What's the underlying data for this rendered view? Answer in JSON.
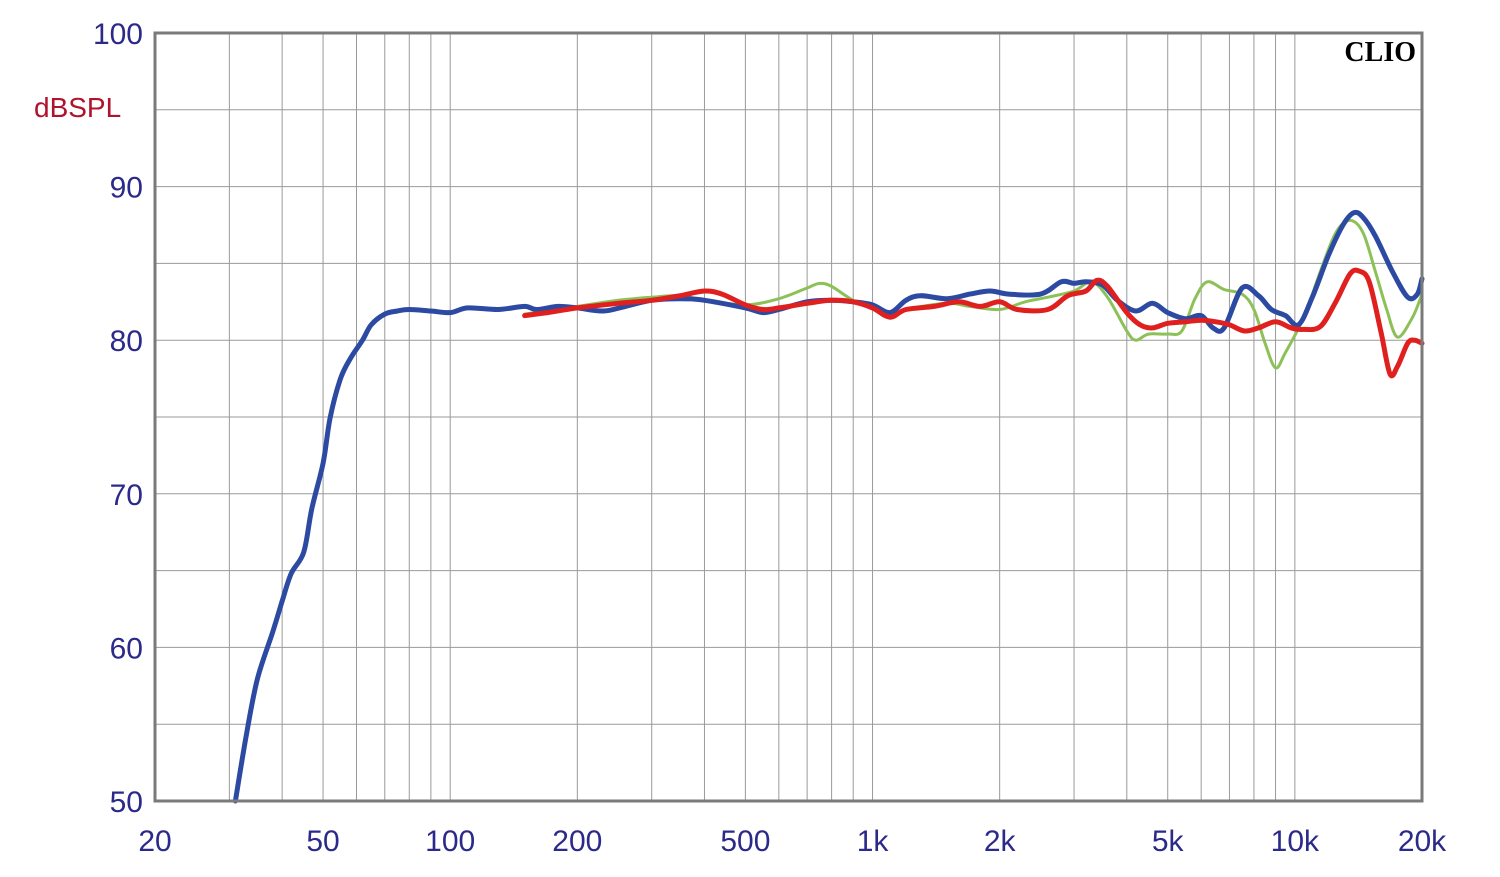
{
  "chart_data": {
    "type": "line",
    "title": "",
    "brand": "CLIO",
    "xlabel": "",
    "ylabel": "dBSPL",
    "x_scale": "log",
    "xlim": [
      20,
      20000
    ],
    "ylim": [
      50,
      100
    ],
    "grid": true,
    "x_ticks": [
      {
        "value": 20,
        "label": "20"
      },
      {
        "value": 50,
        "label": "50"
      },
      {
        "value": 100,
        "label": "100"
      },
      {
        "value": 200,
        "label": "200"
      },
      {
        "value": 500,
        "label": "500"
      },
      {
        "value": 1000,
        "label": "1k"
      },
      {
        "value": 2000,
        "label": "2k"
      },
      {
        "value": 5000,
        "label": "5k"
      },
      {
        "value": 10000,
        "label": "10k"
      },
      {
        "value": 20000,
        "label": "20k"
      }
    ],
    "y_ticks": [
      {
        "value": 50,
        "label": "50"
      },
      {
        "value": 60,
        "label": "60"
      },
      {
        "value": 70,
        "label": "70"
      },
      {
        "value": 80,
        "label": "80"
      },
      {
        "value": 90,
        "label": "90"
      },
      {
        "value": 100,
        "label": "100"
      }
    ],
    "colors": {
      "grid": "#9a9a9a",
      "frame": "#7a7a7a",
      "tick_text": "#2b2a8a",
      "ylabel_text": "#b0132b"
    },
    "series": [
      {
        "color": "#8cc157",
        "width": 3,
        "points": [
          [
            150,
            81.7
          ],
          [
            200,
            82.2
          ],
          [
            250,
            82.6
          ],
          [
            300,
            82.8
          ],
          [
            350,
            82.9
          ],
          [
            400,
            82.6
          ],
          [
            500,
            82.3
          ],
          [
            600,
            82.7
          ],
          [
            700,
            83.4
          ],
          [
            750,
            83.7
          ],
          [
            800,
            83.5
          ],
          [
            900,
            82.6
          ],
          [
            1000,
            82.2
          ],
          [
            1100,
            81.5
          ],
          [
            1200,
            82.0
          ],
          [
            1500,
            82.4
          ],
          [
            1700,
            82.2
          ],
          [
            2000,
            82.0
          ],
          [
            2300,
            82.5
          ],
          [
            2600,
            82.8
          ],
          [
            3000,
            83.2
          ],
          [
            3300,
            83.8
          ],
          [
            3600,
            82.8
          ],
          [
            4000,
            80.6
          ],
          [
            4200,
            80.0
          ],
          [
            4500,
            80.4
          ],
          [
            5000,
            80.4
          ],
          [
            5400,
            80.6
          ],
          [
            5800,
            82.7
          ],
          [
            6200,
            83.8
          ],
          [
            6800,
            83.3
          ],
          [
            7500,
            83.0
          ],
          [
            8000,
            82.0
          ],
          [
            8500,
            79.8
          ],
          [
            9000,
            78.2
          ],
          [
            9500,
            79.2
          ],
          [
            10500,
            81.5
          ],
          [
            11500,
            84.5
          ],
          [
            12500,
            87.0
          ],
          [
            13500,
            87.8
          ],
          [
            14500,
            87.0
          ],
          [
            15500,
            84.5
          ],
          [
            16500,
            82.0
          ],
          [
            17500,
            80.2
          ],
          [
            19000,
            81.5
          ],
          [
            20000,
            83.0
          ]
        ]
      },
      {
        "color": "#2d4aa3",
        "width": 5,
        "points": [
          [
            31,
            50.0
          ],
          [
            33,
            54.5
          ],
          [
            35,
            58.0
          ],
          [
            38,
            61.0
          ],
          [
            40,
            63.0
          ],
          [
            42,
            64.8
          ],
          [
            45,
            66.2
          ],
          [
            47,
            69.0
          ],
          [
            50,
            72.0
          ],
          [
            52,
            75.0
          ],
          [
            55,
            77.5
          ],
          [
            58,
            78.8
          ],
          [
            62,
            80.0
          ],
          [
            65,
            81.0
          ],
          [
            70,
            81.7
          ],
          [
            75,
            81.9
          ],
          [
            80,
            82.0
          ],
          [
            90,
            81.9
          ],
          [
            100,
            81.8
          ],
          [
            110,
            82.1
          ],
          [
            130,
            82.0
          ],
          [
            150,
            82.2
          ],
          [
            160,
            82.0
          ],
          [
            180,
            82.2
          ],
          [
            200,
            82.1
          ],
          [
            230,
            81.9
          ],
          [
            260,
            82.2
          ],
          [
            300,
            82.6
          ],
          [
            350,
            82.7
          ],
          [
            400,
            82.6
          ],
          [
            500,
            82.1
          ],
          [
            550,
            81.8
          ],
          [
            600,
            82.0
          ],
          [
            700,
            82.5
          ],
          [
            800,
            82.6
          ],
          [
            900,
            82.5
          ],
          [
            1000,
            82.3
          ],
          [
            1100,
            81.8
          ],
          [
            1200,
            82.6
          ],
          [
            1300,
            82.9
          ],
          [
            1500,
            82.7
          ],
          [
            1700,
            83.0
          ],
          [
            1900,
            83.2
          ],
          [
            2100,
            83.0
          ],
          [
            2500,
            83.0
          ],
          [
            2800,
            83.8
          ],
          [
            3000,
            83.7
          ],
          [
            3200,
            83.8
          ],
          [
            3500,
            83.6
          ],
          [
            3800,
            82.6
          ],
          [
            4200,
            81.9
          ],
          [
            4600,
            82.4
          ],
          [
            5000,
            81.8
          ],
          [
            5500,
            81.4
          ],
          [
            6000,
            81.6
          ],
          [
            6400,
            80.8
          ],
          [
            6800,
            80.8
          ],
          [
            7500,
            83.4
          ],
          [
            8200,
            82.9
          ],
          [
            8800,
            82.0
          ],
          [
            9500,
            81.6
          ],
          [
            10200,
            81.0
          ],
          [
            11000,
            82.8
          ],
          [
            12000,
            85.5
          ],
          [
            13000,
            87.5
          ],
          [
            13800,
            88.3
          ],
          [
            14500,
            88.0
          ],
          [
            15500,
            86.8
          ],
          [
            17000,
            84.5
          ],
          [
            18500,
            82.8
          ],
          [
            19500,
            83.0
          ],
          [
            20000,
            84.0
          ]
        ]
      },
      {
        "color": "#e0201f",
        "width": 5,
        "points": [
          [
            150,
            81.6
          ],
          [
            170,
            81.8
          ],
          [
            200,
            82.1
          ],
          [
            250,
            82.4
          ],
          [
            300,
            82.6
          ],
          [
            350,
            82.9
          ],
          [
            400,
            83.2
          ],
          [
            440,
            83.0
          ],
          [
            500,
            82.3
          ],
          [
            550,
            82.0
          ],
          [
            600,
            82.1
          ],
          [
            700,
            82.4
          ],
          [
            800,
            82.6
          ],
          [
            900,
            82.5
          ],
          [
            1000,
            82.1
          ],
          [
            1100,
            81.5
          ],
          [
            1200,
            82.0
          ],
          [
            1400,
            82.2
          ],
          [
            1600,
            82.5
          ],
          [
            1800,
            82.2
          ],
          [
            2000,
            82.5
          ],
          [
            2200,
            82.0
          ],
          [
            2600,
            82.0
          ],
          [
            2900,
            82.9
          ],
          [
            3200,
            83.2
          ],
          [
            3400,
            83.9
          ],
          [
            3600,
            83.5
          ],
          [
            4000,
            81.8
          ],
          [
            4300,
            81.0
          ],
          [
            4600,
            80.8
          ],
          [
            5000,
            81.1
          ],
          [
            5500,
            81.2
          ],
          [
            6000,
            81.3
          ],
          [
            6500,
            81.2
          ],
          [
            7000,
            81.0
          ],
          [
            7600,
            80.6
          ],
          [
            8200,
            80.8
          ],
          [
            9000,
            81.2
          ],
          [
            9800,
            80.8
          ],
          [
            10500,
            80.7
          ],
          [
            11500,
            80.9
          ],
          [
            12500,
            82.5
          ],
          [
            13500,
            84.3
          ],
          [
            14200,
            84.5
          ],
          [
            15000,
            83.8
          ],
          [
            16000,
            80.5
          ],
          [
            16800,
            77.8
          ],
          [
            17500,
            78.3
          ],
          [
            18500,
            79.8
          ],
          [
            19200,
            80.0
          ],
          [
            20000,
            79.8
          ]
        ]
      }
    ]
  }
}
